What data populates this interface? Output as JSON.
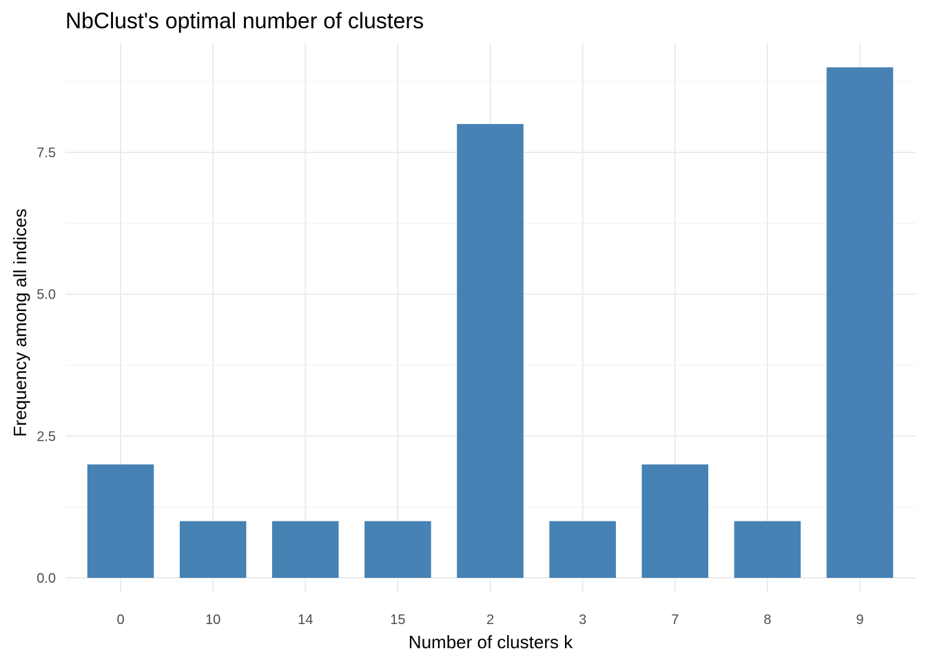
{
  "chart_data": {
    "type": "bar",
    "title": "NbClust's optimal number of clusters",
    "xlabel": "Number of clusters k",
    "ylabel": "Frequency among all indices",
    "categories": [
      "0",
      "10",
      "14",
      "15",
      "2",
      "3",
      "7",
      "8",
      "9"
    ],
    "values": [
      2,
      1,
      1,
      1,
      8,
      1,
      2,
      1,
      9
    ],
    "ylim": [
      0,
      9
    ],
    "yticks": [
      "0.0",
      "2.5",
      "5.0",
      "7.5"
    ],
    "grid": true,
    "legend": "none",
    "bar_color": "#4682B4"
  }
}
